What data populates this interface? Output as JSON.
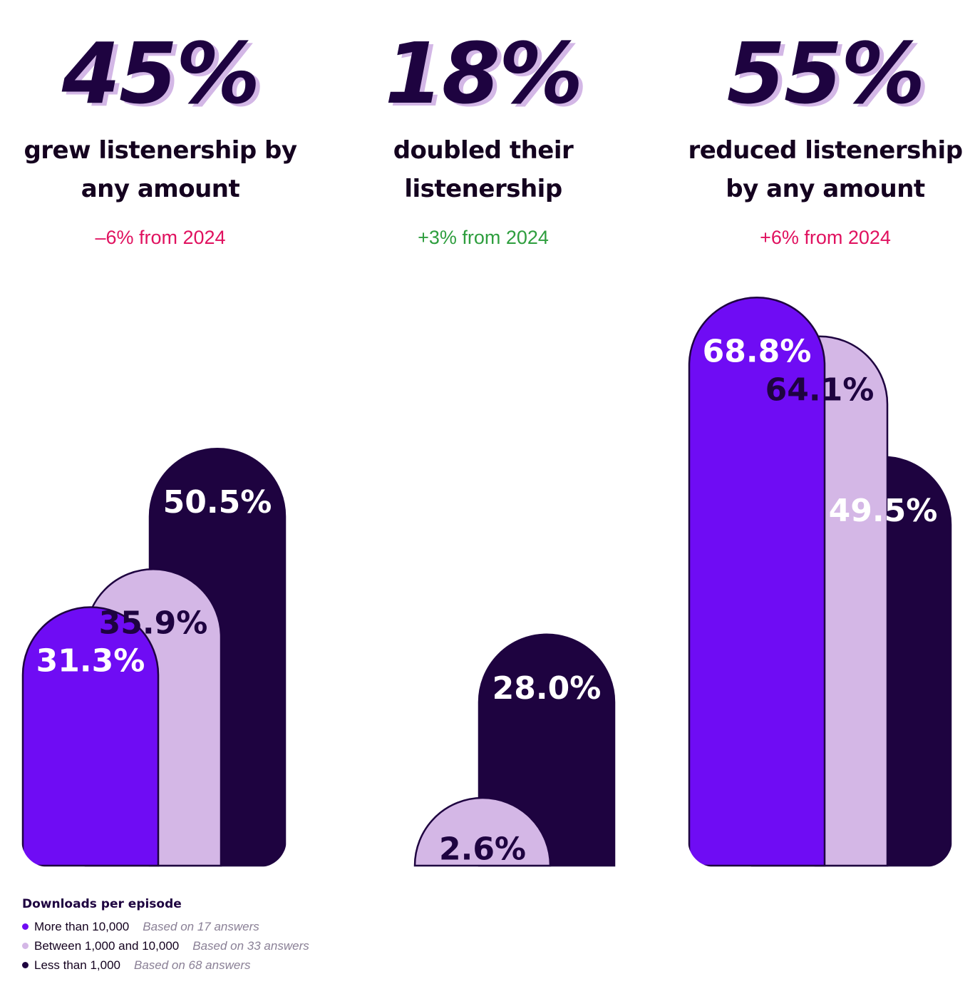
{
  "stats": [
    {
      "value": "45%",
      "line1": "grew listenership by",
      "line2": "any amount",
      "delta": "–6% from 2024",
      "delta_color": "#e0115f"
    },
    {
      "value": "18%",
      "line1": "doubled their",
      "line2": "listenership",
      "delta": "+3% from 2024",
      "delta_color": "#2e9e3e"
    },
    {
      "value": "55%",
      "line1": "reduced listenership",
      "line2": "by any amount",
      "delta": "+6% from 2024",
      "delta_color": "#e0115f"
    }
  ],
  "chart_data": {
    "type": "bar",
    "categories": [
      "grew listenership by any amount",
      "doubled their listenership",
      "reduced listenership by any amount"
    ],
    "series": [
      {
        "name": "More than 10,000",
        "color": "#6f0cf4",
        "label_color": "#ffffff",
        "values": [
          31.3,
          null,
          68.8
        ],
        "labels": [
          "31.3%",
          "",
          "68.8%"
        ]
      },
      {
        "name": "Between 1,000 and 10,000",
        "color": "#d4b7e6",
        "label_color": "#1e0340",
        "values": [
          35.9,
          2.6,
          64.1
        ],
        "labels": [
          "35.9%",
          "2.6%",
          "64.1%"
        ]
      },
      {
        "name": "Less than 1,000",
        "color": "#1e0340",
        "label_color": "#ffffff",
        "values": [
          50.5,
          28.0,
          49.5
        ],
        "labels": [
          "50.5%",
          "28.0%",
          "49.5%"
        ]
      }
    ]
  },
  "legend": {
    "title": "Downloads per episode",
    "items": [
      {
        "label": "More than 10,000",
        "basis": "Based on 17 answers",
        "color": "#6f0cf4"
      },
      {
        "label": "Between 1,000 and 10,000",
        "basis": "Based on 33 answers",
        "color": "#d4b7e6"
      },
      {
        "label": "Less than 1,000",
        "basis": "Based on 68 answers",
        "color": "#1e0340"
      }
    ]
  }
}
